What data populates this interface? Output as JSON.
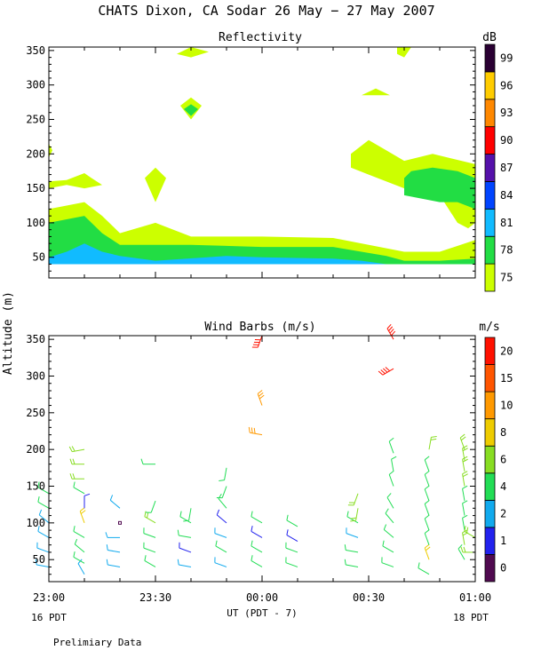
{
  "title": "CHATS Dixon, CA  Sodar  26 May − 27 May 2007",
  "y_axis_label": "Altitude (m)",
  "footer_note": "Prelimiary Data",
  "chart_data": [
    {
      "type": "heatmap",
      "name": "reflectivity",
      "title": "Reflectivity",
      "units_label": "dB",
      "ylabel": "Altitude (m)",
      "xlabel": "UT  (PDT - 7)",
      "xlim": [
        0,
        120
      ],
      "ylim": [
        20,
        355
      ],
      "x_ticks": [
        {
          "value": 0,
          "label": "23:00"
        },
        {
          "value": 30,
          "label": "23:30"
        },
        {
          "value": 60,
          "label": "00:00"
        },
        {
          "value": 90,
          "label": "00:30"
        },
        {
          "value": 120,
          "label": "01:00"
        }
      ],
      "y_ticks": [
        50,
        100,
        150,
        200,
        250,
        300,
        350
      ],
      "date_labels": {
        "left": "16 PDT",
        "right": "18 PDT"
      },
      "colorbar": {
        "levels": [
          "75",
          "78",
          "81",
          "84",
          "87",
          "90",
          "93",
          "96",
          "99"
        ],
        "colors": [
          "#ccff00",
          "#22dd44",
          "#11bbff",
          "#0044ff",
          "#5511aa",
          "#ff0000",
          "#ff8800",
          "#ffcc00",
          "#2a0033"
        ]
      },
      "regions": [
        {
          "level": "75",
          "points": [
            [
              0,
              120
            ],
            [
              10,
              130
            ],
            [
              15,
              110
            ],
            [
              20,
              85
            ],
            [
              30,
              100
            ],
            [
              40,
              80
            ],
            [
              60,
              80
            ],
            [
              80,
              78
            ],
            [
              100,
              58
            ],
            [
              110,
              58
            ],
            [
              120,
              75
            ],
            [
              120,
              40
            ],
            [
              0,
              40
            ]
          ]
        },
        {
          "level": "78",
          "points": [
            [
              0,
              100
            ],
            [
              10,
              110
            ],
            [
              15,
              85
            ],
            [
              20,
              68
            ],
            [
              40,
              68
            ],
            [
              60,
              65
            ],
            [
              80,
              65
            ],
            [
              95,
              52
            ],
            [
              100,
              45
            ],
            [
              110,
              45
            ],
            [
              120,
              48
            ],
            [
              120,
              40
            ],
            [
              0,
              40
            ]
          ]
        },
        {
          "level": "81",
          "points": [
            [
              0,
              50
            ],
            [
              5,
              58
            ],
            [
              10,
              70
            ],
            [
              15,
              58
            ],
            [
              20,
              52
            ],
            [
              30,
              45
            ],
            [
              50,
              52
            ],
            [
              60,
              50
            ],
            [
              80,
              48
            ],
            [
              88,
              45
            ],
            [
              95,
              40
            ],
            [
              0,
              40
            ]
          ]
        },
        {
          "level": "75",
          "points": [
            [
              0,
              215
            ],
            [
              1,
              205
            ],
            [
              0,
              195
            ]
          ]
        },
        {
          "level": "75",
          "points": [
            [
              0,
              160
            ],
            [
              5,
              162
            ],
            [
              10,
              172
            ],
            [
              12,
              165
            ],
            [
              15,
              155
            ],
            [
              10,
              150
            ],
            [
              5,
              155
            ],
            [
              0,
              150
            ]
          ]
        },
        {
          "level": "75",
          "points": [
            [
              27,
              165
            ],
            [
              30,
              180
            ],
            [
              33,
              165
            ],
            [
              30,
              130
            ]
          ]
        },
        {
          "level": "75",
          "points": [
            [
              36,
              345
            ],
            [
              40,
              355
            ],
            [
              45,
              348
            ],
            [
              40,
              340
            ]
          ]
        },
        {
          "level": "75",
          "points": [
            [
              37,
              270
            ],
            [
              40,
              282
            ],
            [
              43,
              270
            ],
            [
              40,
              250
            ]
          ]
        },
        {
          "level": "78",
          "points": [
            [
              38,
              265
            ],
            [
              40,
              272
            ],
            [
              42,
              265
            ],
            [
              40,
              255
            ]
          ]
        },
        {
          "level": "75",
          "points": [
            [
              88,
              285
            ],
            [
              92,
              295
            ],
            [
              96,
              285
            ]
          ]
        },
        {
          "level": "75",
          "points": [
            [
              98,
              355
            ],
            [
              102,
              355
            ],
            [
              100,
              340
            ],
            [
              98,
              345
            ]
          ]
        },
        {
          "level": "75",
          "points": [
            [
              85,
              200
            ],
            [
              90,
              220
            ],
            [
              95,
              205
            ],
            [
              100,
              190
            ],
            [
              108,
              200
            ],
            [
              120,
              185
            ],
            [
              120,
              100
            ],
            [
              118,
              92
            ],
            [
              115,
              100
            ],
            [
              110,
              140
            ],
            [
              100,
              150
            ],
            [
              90,
              170
            ],
            [
              85,
              180
            ]
          ]
        },
        {
          "level": "78",
          "points": [
            [
              100,
              155
            ],
            [
              100,
              165
            ],
            [
              102,
              175
            ],
            [
              108,
              180
            ],
            [
              115,
              175
            ],
            [
              120,
              165
            ],
            [
              120,
              120
            ],
            [
              115,
              130
            ],
            [
              110,
              130
            ],
            [
              100,
              140
            ]
          ]
        }
      ]
    },
    {
      "type": "scatter",
      "name": "wind_barbs",
      "title": "Wind Barbs (m/s)",
      "units_label": "m/s",
      "ylabel": "Altitude (m)",
      "xlabel": "UT  (PDT - 7)",
      "xlim": [
        0,
        120
      ],
      "ylim": [
        20,
        355
      ],
      "x_ticks": [
        {
          "value": 0,
          "label": "23:00"
        },
        {
          "value": 30,
          "label": "23:30"
        },
        {
          "value": 60,
          "label": "00:00"
        },
        {
          "value": 90,
          "label": "00:30"
        },
        {
          "value": 120,
          "label": "01:00"
        }
      ],
      "y_ticks": [
        50,
        100,
        150,
        200,
        250,
        300,
        350
      ],
      "colorbar": {
        "levels": [
          "0",
          "1",
          "2",
          "4",
          "6",
          "8",
          "10",
          "15",
          "20"
        ],
        "colors": [
          "#500a50",
          "#2222ee",
          "#11aaee",
          "#22dd55",
          "#88dd22",
          "#eecc00",
          "#ff9900",
          "#ff5500",
          "#ff1100"
        ]
      },
      "barbs": [
        {
          "t": 0,
          "alt": 40,
          "speed": 2,
          "dir": 280
        },
        {
          "t": 0,
          "alt": 60,
          "speed": 3,
          "dir": 290
        },
        {
          "t": 0,
          "alt": 80,
          "speed": 3,
          "dir": 300
        },
        {
          "t": 0,
          "alt": 100,
          "speed": 2.5,
          "dir": 310
        },
        {
          "t": 0,
          "alt": 120,
          "speed": 4,
          "dir": 300
        },
        {
          "t": 0,
          "alt": 140,
          "speed": 4,
          "dir": 300
        },
        {
          "t": 10,
          "alt": 30,
          "speed": 3,
          "dir": 330
        },
        {
          "t": 10,
          "alt": 45,
          "speed": 4,
          "dir": 300
        },
        {
          "t": 10,
          "alt": 60,
          "speed": 4,
          "dir": 310
        },
        {
          "t": 10,
          "alt": 80,
          "speed": 5,
          "dir": 300
        },
        {
          "t": 10,
          "alt": 100,
          "speed": 8,
          "dir": 340
        },
        {
          "t": 10,
          "alt": 120,
          "speed": 1,
          "dir": 0
        },
        {
          "t": 10,
          "alt": 140,
          "speed": 5,
          "dir": 300
        },
        {
          "t": 10,
          "alt": 160,
          "speed": 6,
          "dir": 270
        },
        {
          "t": 10,
          "alt": 180,
          "speed": 6,
          "dir": 270
        },
        {
          "t": 10,
          "alt": 200,
          "speed": 7,
          "dir": 260
        },
        {
          "t": 20,
          "alt": 40,
          "speed": 3,
          "dir": 280
        },
        {
          "t": 20,
          "alt": 60,
          "speed": 3,
          "dir": 280
        },
        {
          "t": 20,
          "alt": 80,
          "speed": 2,
          "dir": 270
        },
        {
          "t": 20,
          "alt": 100,
          "speed": 0.5,
          "dir": 0
        },
        {
          "t": 20,
          "alt": 120,
          "speed": 2,
          "dir": 310
        },
        {
          "t": 30,
          "alt": 40,
          "speed": 4,
          "dir": 300
        },
        {
          "t": 30,
          "alt": 60,
          "speed": 4,
          "dir": 290
        },
        {
          "t": 30,
          "alt": 80,
          "speed": 5,
          "dir": 290
        },
        {
          "t": 30,
          "alt": 100,
          "speed": 7,
          "dir": 300
        },
        {
          "t": 30,
          "alt": 130,
          "speed": 5,
          "dir": 200
        },
        {
          "t": 30,
          "alt": 180,
          "speed": 5,
          "dir": 270
        },
        {
          "t": 40,
          "alt": 40,
          "speed": 3,
          "dir": 280
        },
        {
          "t": 40,
          "alt": 60,
          "speed": 1,
          "dir": 290
        },
        {
          "t": 40,
          "alt": 80,
          "speed": 4,
          "dir": 280
        },
        {
          "t": 40,
          "alt": 100,
          "speed": 5,
          "dir": 300
        },
        {
          "t": 40,
          "alt": 120,
          "speed": 5,
          "dir": 190
        },
        {
          "t": 50,
          "alt": 40,
          "speed": 3,
          "dir": 290
        },
        {
          "t": 50,
          "alt": 60,
          "speed": 4,
          "dir": 300
        },
        {
          "t": 50,
          "alt": 80,
          "speed": 3,
          "dir": 290
        },
        {
          "t": 50,
          "alt": 100,
          "speed": 1,
          "dir": 310
        },
        {
          "t": 50,
          "alt": 120,
          "speed": 4,
          "dir": 320
        },
        {
          "t": 50,
          "alt": 150,
          "speed": 5,
          "dir": 200
        },
        {
          "t": 50,
          "alt": 175,
          "speed": 5,
          "dir": 190
        },
        {
          "t": 60,
          "alt": 40,
          "speed": 4,
          "dir": 300
        },
        {
          "t": 60,
          "alt": 60,
          "speed": 4,
          "dir": 300
        },
        {
          "t": 60,
          "alt": 80,
          "speed": 1,
          "dir": 300
        },
        {
          "t": 60,
          "alt": 100,
          "speed": 4,
          "dir": 300
        },
        {
          "t": 60,
          "alt": 220,
          "speed": 10,
          "dir": 280
        },
        {
          "t": 60,
          "alt": 260,
          "speed": 12,
          "dir": 340
        },
        {
          "t": 60,
          "alt": 355,
          "speed": 20,
          "dir": 200
        },
        {
          "t": 70,
          "alt": 40,
          "speed": 4,
          "dir": 290
        },
        {
          "t": 70,
          "alt": 60,
          "speed": 5,
          "dir": 290
        },
        {
          "t": 70,
          "alt": 75,
          "speed": 1,
          "dir": 300
        },
        {
          "t": 70,
          "alt": 95,
          "speed": 4,
          "dir": 300
        },
        {
          "t": 87,
          "alt": 40,
          "speed": 4,
          "dir": 280
        },
        {
          "t": 87,
          "alt": 60,
          "speed": 4,
          "dir": 280
        },
        {
          "t": 87,
          "alt": 80,
          "speed": 3,
          "dir": 290
        },
        {
          "t": 87,
          "alt": 100,
          "speed": 4,
          "dir": 300
        },
        {
          "t": 87,
          "alt": 120,
          "speed": 6,
          "dir": 190
        },
        {
          "t": 87,
          "alt": 140,
          "speed": 6,
          "dir": 200
        },
        {
          "t": 97,
          "alt": 40,
          "speed": 4,
          "dir": 290
        },
        {
          "t": 97,
          "alt": 60,
          "speed": 5,
          "dir": 300
        },
        {
          "t": 97,
          "alt": 80,
          "speed": 4,
          "dir": 310
        },
        {
          "t": 97,
          "alt": 100,
          "speed": 4,
          "dir": 320
        },
        {
          "t": 97,
          "alt": 120,
          "speed": 5,
          "dir": 330
        },
        {
          "t": 97,
          "alt": 150,
          "speed": 5,
          "dir": 340
        },
        {
          "t": 97,
          "alt": 170,
          "speed": 5,
          "dir": 350
        },
        {
          "t": 97,
          "alt": 195,
          "speed": 5,
          "dir": 340
        },
        {
          "t": 97,
          "alt": 310,
          "speed": 22,
          "dir": 240
        },
        {
          "t": 97,
          "alt": 350,
          "speed": 20,
          "dir": 330
        },
        {
          "t": 107,
          "alt": 30,
          "speed": 4,
          "dir": 300
        },
        {
          "t": 107,
          "alt": 50,
          "speed": 8,
          "dir": 340
        },
        {
          "t": 107,
          "alt": 70,
          "speed": 5,
          "dir": 340
        },
        {
          "t": 107,
          "alt": 90,
          "speed": 5,
          "dir": 340
        },
        {
          "t": 107,
          "alt": 110,
          "speed": 5,
          "dir": 340
        },
        {
          "t": 107,
          "alt": 130,
          "speed": 5,
          "dir": 340
        },
        {
          "t": 107,
          "alt": 150,
          "speed": 5,
          "dir": 340
        },
        {
          "t": 107,
          "alt": 170,
          "speed": 5,
          "dir": 340
        },
        {
          "t": 107,
          "alt": 200,
          "speed": 6,
          "dir": 10
        },
        {
          "t": 117,
          "alt": 50,
          "speed": 4,
          "dir": 330
        },
        {
          "t": 117,
          "alt": 70,
          "speed": 6,
          "dir": 350
        },
        {
          "t": 117,
          "alt": 90,
          "speed": 5,
          "dir": 350
        },
        {
          "t": 117,
          "alt": 110,
          "speed": 5,
          "dir": 350
        },
        {
          "t": 117,
          "alt": 130,
          "speed": 5,
          "dir": 350
        },
        {
          "t": 117,
          "alt": 150,
          "speed": 6,
          "dir": 350
        },
        {
          "t": 117,
          "alt": 170,
          "speed": 6,
          "dir": 350
        },
        {
          "t": 117,
          "alt": 185,
          "speed": 6,
          "dir": 350
        },
        {
          "t": 117,
          "alt": 200,
          "speed": 6,
          "dir": 340
        },
        {
          "t": 120,
          "alt": 60,
          "speed": 6,
          "dir": 270
        },
        {
          "t": 120,
          "alt": 80,
          "speed": 7,
          "dir": 300
        }
      ]
    }
  ]
}
